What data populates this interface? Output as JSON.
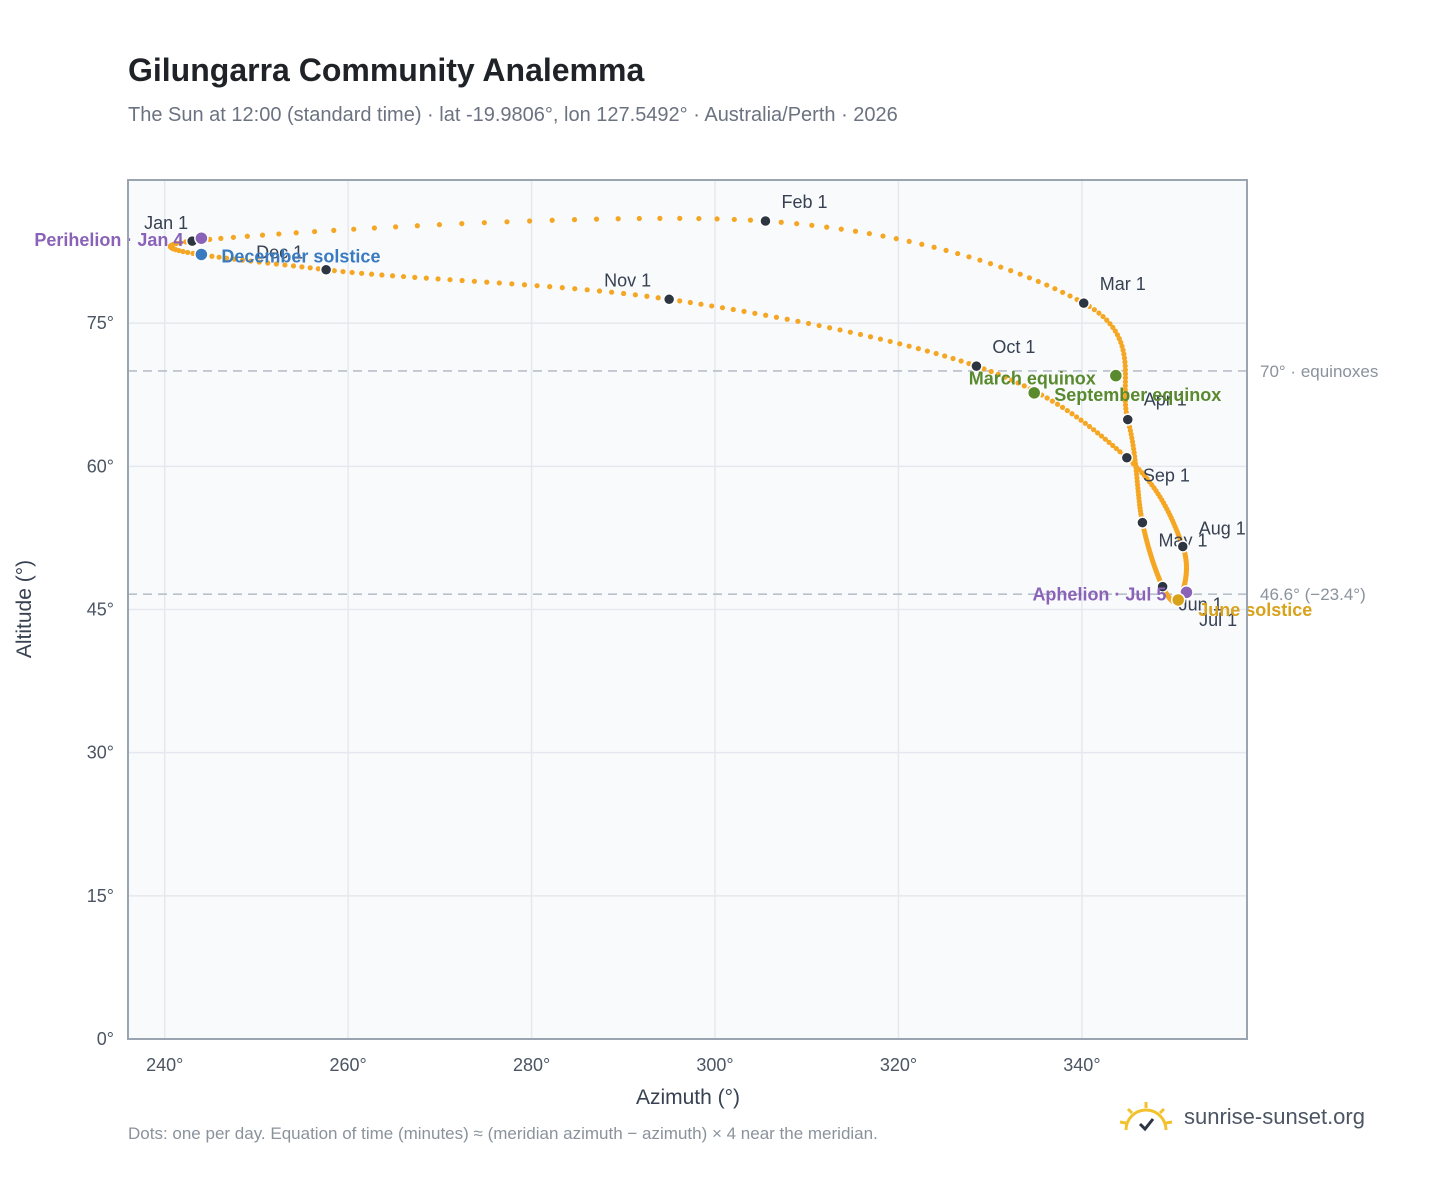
{
  "header": {
    "title": "Gilungarra Community Analemma",
    "subtitle": "The Sun at 12:00 (standard time) · lat -19.9806°, lon 127.5492° · Australia/Perth · 2026"
  },
  "footer": {
    "note": "Dots: one per day. Equation of time (minutes) ≈ (meridian azimuth − azimuth) × 4 near the meridian.",
    "brand": "sunrise-sunset.org",
    "brand_icon": "sun-logo-icon"
  },
  "colors": {
    "path": "#f5a623",
    "month_dot": "#2d3540",
    "perihelion": "#8a63b8",
    "aphelion": "#8a63b8",
    "december_solstice": "#3a7ac0",
    "june_solstice": "#d9a21b",
    "equinox": "#5a8a2e",
    "plot_bg": "#f8fafc",
    "grid": "#e5e9ef",
    "frame": "#9aa5b1"
  },
  "chart_data": {
    "type": "scatter",
    "title": "Gilungarra Community Analemma",
    "xlabel": "Azimuth (°)",
    "ylabel": "Altitude (°)",
    "xlim": [
      236,
      358
    ],
    "ylim": [
      0,
      90
    ],
    "xticks": [
      240,
      260,
      280,
      300,
      320,
      340
    ],
    "xtick_labels": [
      "240°",
      "260°",
      "280°",
      "300°",
      "320°",
      "340°"
    ],
    "yticks": [
      0,
      15,
      30,
      45,
      60,
      75
    ],
    "ytick_labels": [
      "0°",
      "15°",
      "30°",
      "45°",
      "60°",
      "75°"
    ],
    "grid": true,
    "reference_lines": [
      {
        "y": 70.0,
        "label": "70° · equinoxes"
      },
      {
        "y": 46.6,
        "label": "46.6° (−23.4°)"
      }
    ],
    "path_style": "one dot per day",
    "months": [
      {
        "label": "Jan 1",
        "az": 243.0,
        "alt": 83.6
      },
      {
        "label": "Feb 1",
        "az": 305.5,
        "alt": 85.7
      },
      {
        "label": "Mar 1",
        "az": 340.2,
        "alt": 77.1
      },
      {
        "label": "Apr 1",
        "az": 345.0,
        "alt": 64.9
      },
      {
        "label": "May 1",
        "az": 346.6,
        "alt": 54.1
      },
      {
        "label": "Jun 1",
        "az": 348.8,
        "alt": 47.4
      },
      {
        "label": "Jul 1",
        "az": 350.6,
        "alt": 46.0
      },
      {
        "label": "Aug 1",
        "az": 351.0,
        "alt": 51.6
      },
      {
        "label": "Sep 1",
        "az": 344.9,
        "alt": 60.9
      },
      {
        "label": "Oct 1",
        "az": 328.5,
        "alt": 70.5
      },
      {
        "label": "Nov 1",
        "az": 295.0,
        "alt": 77.5
      },
      {
        "label": "Dec 1",
        "az": 257.6,
        "alt": 80.6
      }
    ],
    "events": [
      {
        "label": "Perihelion · Jan 4",
        "az": 244.0,
        "alt": 83.9,
        "kind": "perihelion"
      },
      {
        "label": "December solstice",
        "az": 244.0,
        "alt": 82.2,
        "kind": "december_solstice"
      },
      {
        "label": "March equinox",
        "az": 343.7,
        "alt": 69.5,
        "kind": "equinox"
      },
      {
        "label": "September equinox",
        "az": 334.8,
        "alt": 67.7,
        "kind": "equinox"
      },
      {
        "label": "Aphelion · Jul 5",
        "az": 351.4,
        "alt": 46.8,
        "kind": "aphelion"
      },
      {
        "label": "June solstice",
        "az": 350.5,
        "alt": 46.0,
        "kind": "june_solstice"
      }
    ]
  }
}
